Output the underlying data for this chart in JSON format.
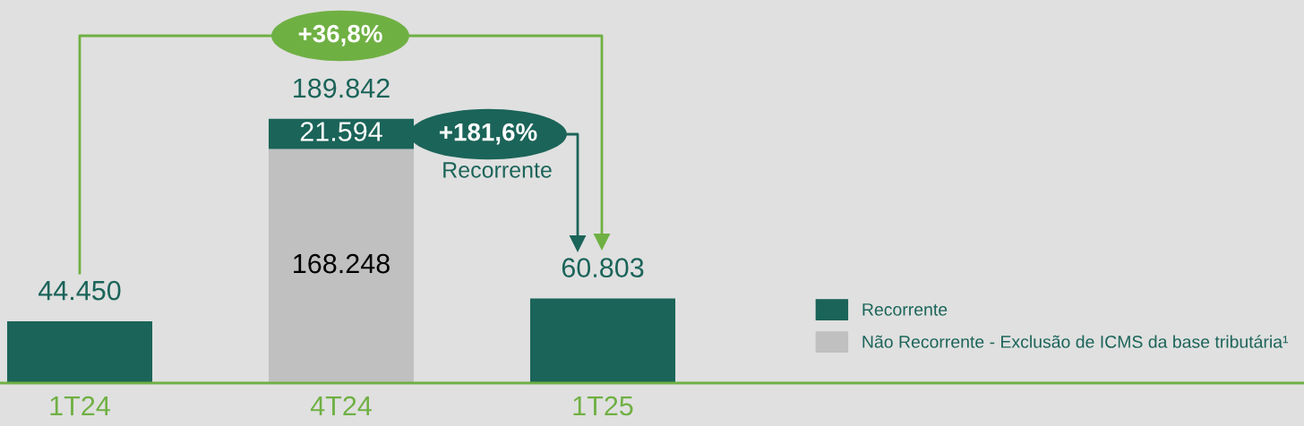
{
  "chart_data": {
    "type": "bar",
    "stacked": true,
    "categories": [
      "1T24",
      "4T24",
      "1T25"
    ],
    "series": [
      {
        "name": "Não Recorrente - Exclusão de ICMS da base tributária¹",
        "color": "#c0c0c0",
        "values": [
          null,
          168248,
          null
        ],
        "value_labels": [
          null,
          "168.248",
          null
        ]
      },
      {
        "name": "Recorrente",
        "color": "#1b6459",
        "values": [
          44450,
          21594,
          60803
        ],
        "value_labels": [
          "44.450",
          "21.594",
          "60.803"
        ]
      }
    ],
    "totals": [
      null,
      "189.842",
      null
    ],
    "annotations": [
      "+36,8%",
      "+181,6%",
      "Recorrente"
    ],
    "legend": "bottom right",
    "grid": false
  }
}
